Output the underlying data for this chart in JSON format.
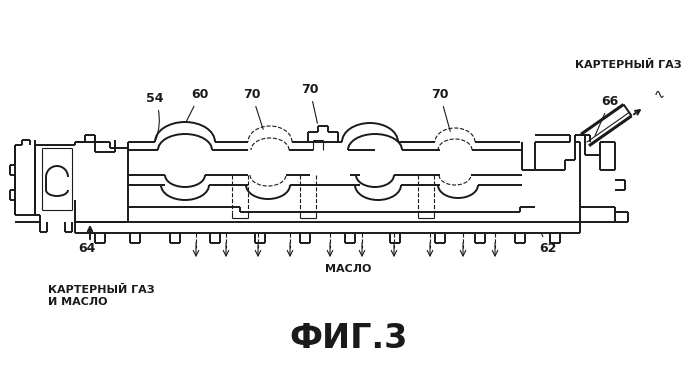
{
  "bg_color": "#ffffff",
  "drawing_color": "#1a1a1a",
  "fig_label": "ФИГ.3",
  "title_fontsize": 24,
  "label_54": "54",
  "label_60": "60",
  "label_70a": "70",
  "label_70b": "70",
  "label_70c": "70",
  "label_66": "66",
  "label_64": "64",
  "label_62": "62",
  "text_karterny_gaz_top": "КАРТЕРНЫЙ ГАЗ",
  "text_maslo": "МАСЛО",
  "text_karterny_gaz_bottom": "КАРТЕРНЫЙ ГАЗ\nИ МАСЛО",
  "lw": 1.4,
  "lw2": 2.2,
  "tlw": 0.8
}
